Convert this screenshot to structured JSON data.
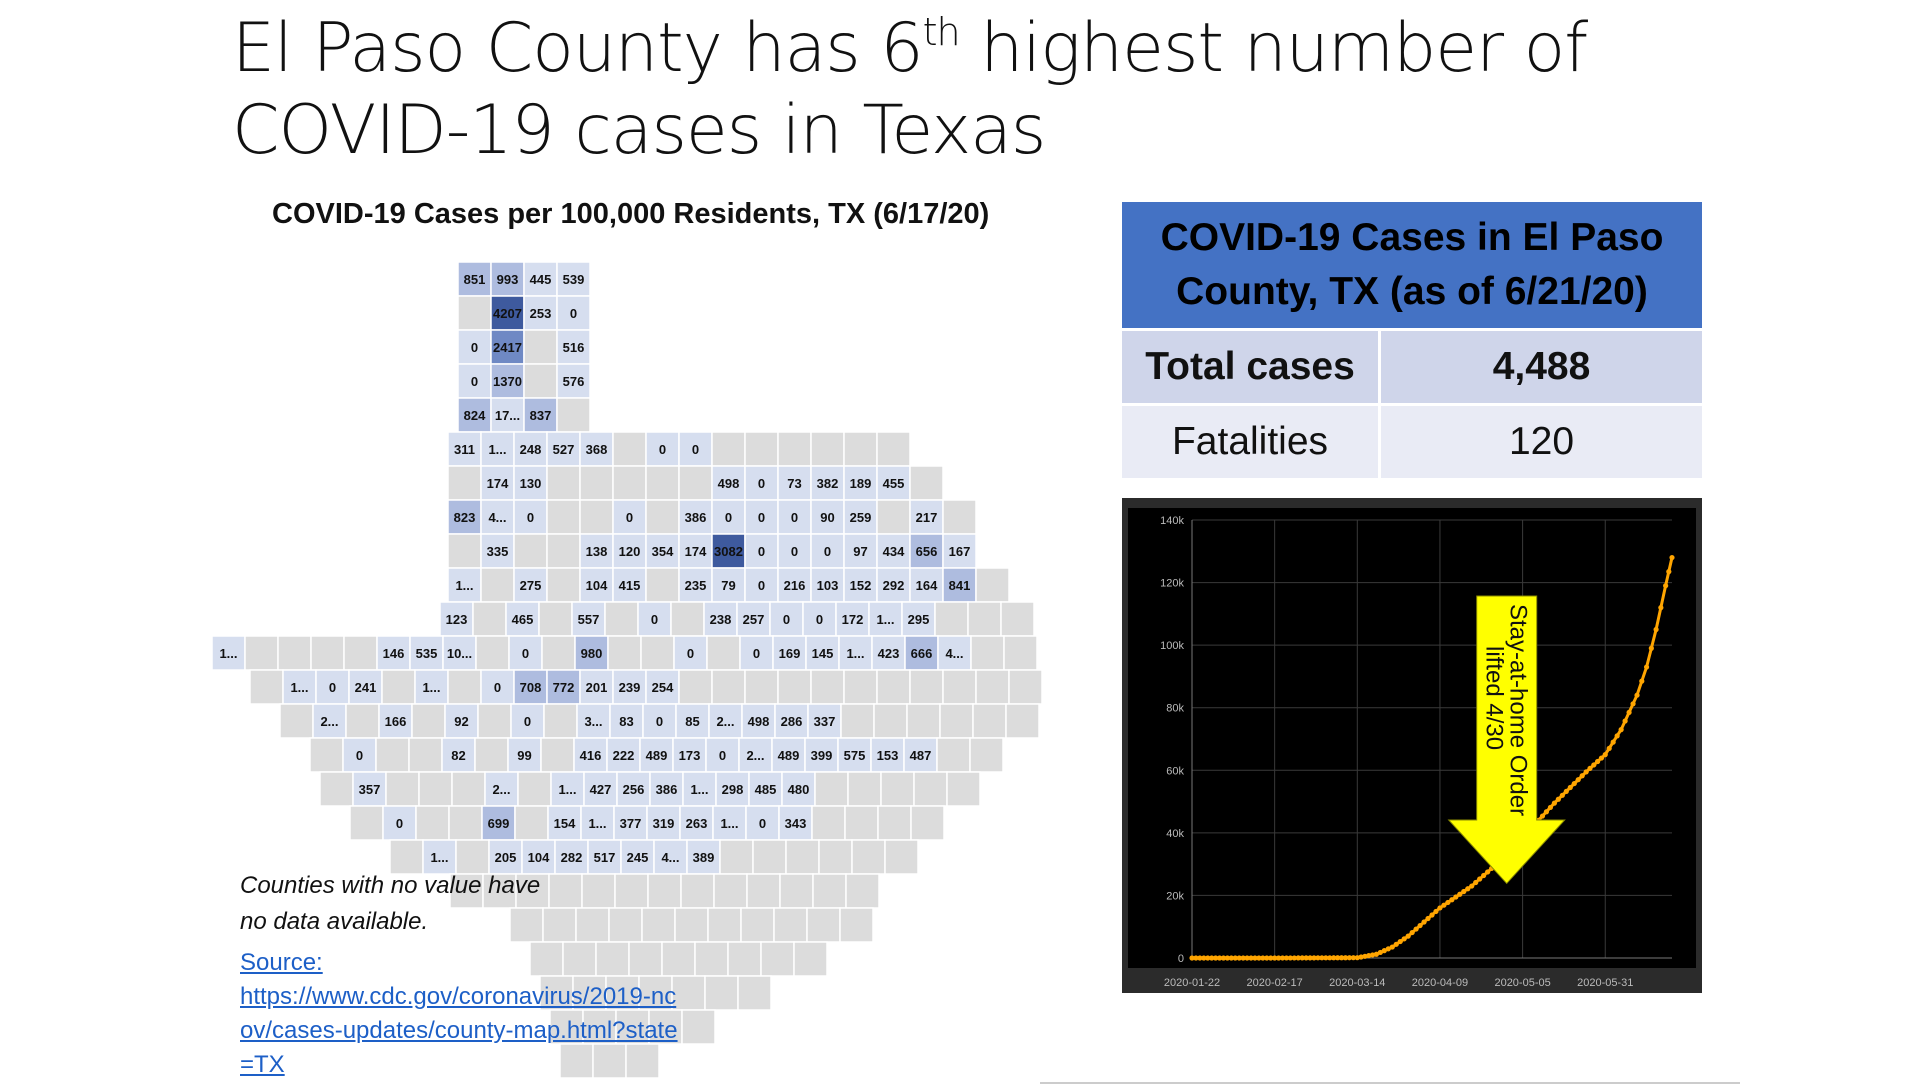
{
  "slide": {
    "title_part1": "El Paso County has 6",
    "title_sup": "th",
    "title_part2": " highest number of",
    "title_line2": "COVID-19 cases in Texas"
  },
  "map": {
    "title": "COVID-19 Cases per 100,000 Residents, TX (6/17/20)",
    "note_line1": "Counties with no value have",
    "note_line2": "no data available.",
    "source_label": "Source:",
    "source_url": "https://www.cdc.gov/coronavirus/2019-ncov/cases-updates/county-map.html?state=TX",
    "colors": {
      "none": "#dcdcdc",
      "low": "#d6deef",
      "mid": "#aebcdf",
      "high": "#6f89c4",
      "top": "#3e5a9e",
      "border": "#ffffff"
    },
    "county_values": [
      "851",
      "993",
      "445",
      "539",
      "4207",
      "253",
      "0",
      "0",
      "2417",
      "516",
      "0",
      "1370",
      "576",
      "824",
      "17...",
      "837",
      "311",
      "1...",
      "248",
      "527",
      "368",
      "0",
      "0",
      "174",
      "130",
      "498",
      "0",
      "73",
      "382",
      "189",
      "455",
      "823",
      "4...",
      "0",
      "0",
      "386",
      "0",
      "0",
      "0",
      "90",
      "259",
      "217",
      "335",
      "138",
      "120",
      "354",
      "174",
      "3082",
      "0",
      "0",
      "0",
      "97",
      "434",
      "656",
      "167",
      "1...",
      "275",
      "104",
      "415",
      "235",
      "79",
      "0",
      "216",
      "103",
      "152",
      "292",
      "164",
      "841",
      "123",
      "465",
      "557",
      "0",
      "238",
      "257",
      "0",
      "0",
      "172",
      "1...",
      "295",
      "1...",
      "146",
      "535",
      "10...",
      "0",
      "980",
      "0",
      "0",
      "169",
      "145",
      "1...",
      "423",
      "666",
      "4...",
      "1...",
      "0",
      "241",
      "1...",
      "0",
      "708",
      "772",
      "201",
      "239",
      "254",
      "2...",
      "166",
      "92",
      "0",
      "3...",
      "83",
      "0",
      "85",
      "2...",
      "498",
      "286",
      "337",
      "0",
      "82",
      "99",
      "416",
      "222",
      "489",
      "173",
      "0",
      "2...",
      "489",
      "399",
      "575",
      "153",
      "487",
      "357",
      "2...",
      "1...",
      "427",
      "256",
      "386",
      "1...",
      "298",
      "485",
      "480",
      "0",
      "699",
      "154",
      "1...",
      "377",
      "319",
      "263",
      "1...",
      "0",
      "343",
      "1...",
      "205",
      "104",
      "282",
      "517",
      "245",
      "4...",
      "389"
    ]
  },
  "table": {
    "header": "COVID-19 Cases in El Paso County, TX (as of 6/21/20)",
    "rows": [
      {
        "label": "Total cases",
        "value": "4,488"
      },
      {
        "label": "Fatalities",
        "value": "120"
      }
    ],
    "colors": {
      "header_bg": "#4472c4",
      "row1_bg": "#cfd5ea",
      "row2_bg": "#e9ebf5"
    }
  },
  "chart_data": {
    "type": "line",
    "title": "",
    "xlabel": "",
    "ylabel": "",
    "x_tick_labels": [
      "2020-01-22",
      "2020-02-17",
      "2020-03-14",
      "2020-04-09",
      "2020-05-05",
      "2020-05-31"
    ],
    "y_tick_labels": [
      "0",
      "20k",
      "40k",
      "60k",
      "80k",
      "100k",
      "120k",
      "140k"
    ],
    "ylim": [
      0,
      140000
    ],
    "xlim": [
      "2020-01-22",
      "2020-06-21"
    ],
    "grid": true,
    "background": "#000000",
    "panel_background": "#2b2b2b",
    "series": [
      {
        "color": "#ffa500",
        "x": [
          "2020-01-22",
          "2020-02-17",
          "2020-03-14",
          "2020-03-20",
          "2020-03-25",
          "2020-03-30",
          "2020-04-04",
          "2020-04-09",
          "2020-04-14",
          "2020-04-19",
          "2020-04-24",
          "2020-04-29",
          "2020-05-05",
          "2020-05-10",
          "2020-05-15",
          "2020-05-20",
          "2020-05-25",
          "2020-05-31",
          "2020-06-05",
          "2020-06-10",
          "2020-06-13",
          "2020-06-16",
          "2020-06-19",
          "2020-06-21"
        ],
        "values": [
          0,
          0,
          100,
          1200,
          3500,
          7000,
          11500,
          16000,
          19500,
          23000,
          27500,
          32000,
          38000,
          44000,
          49500,
          54500,
          59500,
          65000,
          73000,
          84000,
          93000,
          105000,
          119000,
          128000
        ]
      }
    ],
    "annotation": {
      "line1": "Stay-at-home Order",
      "line2": "lifted 4/30",
      "color": "#ffff00",
      "target_x": "2020-04-30"
    }
  }
}
